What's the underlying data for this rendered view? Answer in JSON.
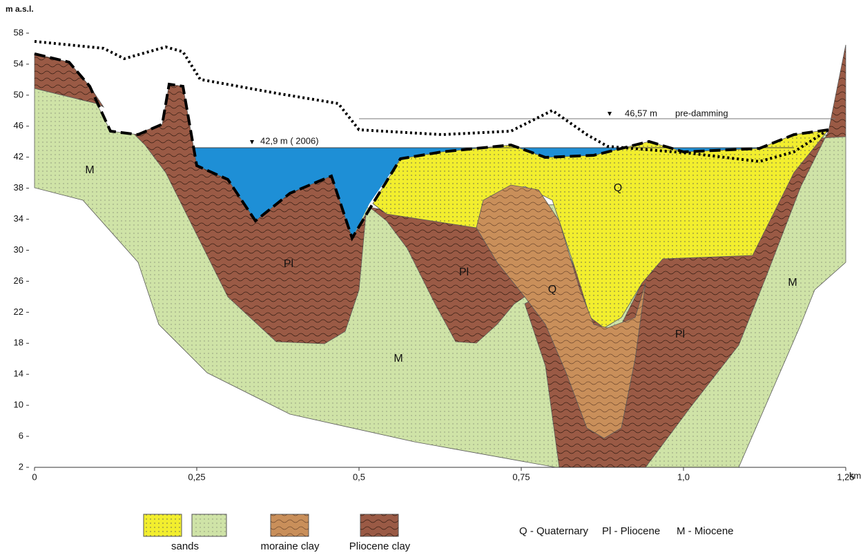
{
  "y_axis_label": "m a.s.l.",
  "yticks": [
    58,
    54,
    50,
    46,
    42,
    38,
    34,
    30,
    26,
    22,
    18,
    14,
    10,
    6,
    2
  ],
  "xticks": [
    {
      "value": 0,
      "label": "0"
    },
    {
      "value": 0.25,
      "label": "0,25"
    },
    {
      "value": 0.5,
      "label": "0,5"
    },
    {
      "value": 0.75,
      "label": "0,75"
    },
    {
      "value": 1.0,
      "label": "1,0"
    },
    {
      "value": 1.25,
      "label": "1,25"
    }
  ],
  "x_unit": "km",
  "annotations": {
    "water_2006": "42,9 m ( 2006)",
    "pre_damming_level": "46,57 m",
    "pre_damming": "pre-damming"
  },
  "layers": [
    "M",
    "Pl",
    "Pl",
    "Q",
    "Q",
    "Pl",
    "M",
    "M"
  ],
  "legend": {
    "items": [
      "sands",
      "moraine clay",
      "Pliocene clay"
    ],
    "key": [
      "Q - Quaternary",
      "Pl - Pliocene",
      "M - Miocene"
    ]
  }
}
